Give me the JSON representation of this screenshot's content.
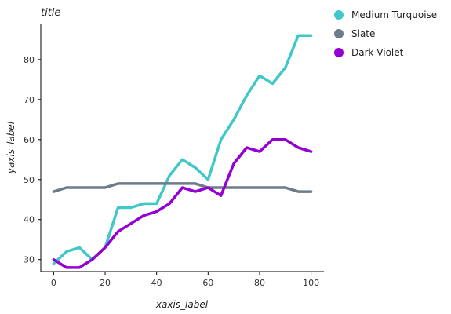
{
  "chart_data": {
    "type": "line",
    "title": "title",
    "xlabel": "xaxis_label",
    "ylabel": "yaxis_label",
    "xlim": [
      -5,
      105
    ],
    "ylim": [
      27,
      89
    ],
    "xticks": [
      0,
      20,
      40,
      60,
      80,
      100
    ],
    "yticks": [
      30,
      40,
      50,
      60,
      70,
      80
    ],
    "grid": false,
    "legend_position": "top-right",
    "series": [
      {
        "name": "Medium Turquoise",
        "color": "#40C8C8",
        "x": [
          0,
          5,
          10,
          15,
          20,
          25,
          30,
          35,
          40,
          45,
          50,
          55,
          60,
          65,
          70,
          75,
          80,
          85,
          90,
          95,
          100
        ],
        "y": [
          29,
          32,
          33,
          30,
          33,
          43,
          43,
          44,
          44,
          51,
          55,
          53,
          50,
          60,
          65,
          71,
          76,
          74,
          78,
          86,
          86
        ]
      },
      {
        "name": "Slate",
        "color": "#6E7B8B",
        "x": [
          0,
          5,
          10,
          15,
          20,
          25,
          30,
          35,
          40,
          45,
          50,
          55,
          60,
          65,
          70,
          75,
          80,
          85,
          90,
          95,
          100
        ],
        "y": [
          47,
          48,
          48,
          48,
          48,
          49,
          49,
          49,
          49,
          49,
          49,
          49,
          48,
          48,
          48,
          48,
          48,
          48,
          48,
          47,
          47
        ]
      },
      {
        "name": "Dark Violet",
        "color": "#9400D3",
        "x": [
          0,
          5,
          10,
          15,
          20,
          25,
          30,
          35,
          40,
          45,
          50,
          55,
          60,
          65,
          70,
          75,
          80,
          85,
          90,
          95,
          100
        ],
        "y": [
          30,
          28,
          28,
          30,
          33,
          37,
          39,
          41,
          42,
          44,
          48,
          47,
          48,
          46,
          54,
          58,
          57,
          60,
          60,
          58,
          57
        ]
      }
    ]
  }
}
